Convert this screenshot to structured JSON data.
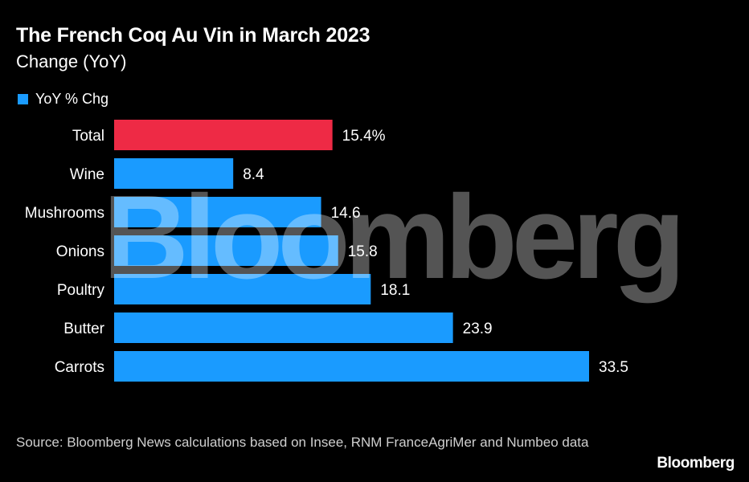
{
  "header": {
    "title": "The French Coq Au Vin in March 2023",
    "subtitle": "Change (YoY)"
  },
  "legend": {
    "label": "YoY % Chg"
  },
  "colors": {
    "background": "#000000",
    "series": "#1a9bff",
    "highlight": "#ee2a45",
    "text": "#ffffff"
  },
  "chart_data": {
    "type": "bar",
    "orientation": "horizontal",
    "categories": [
      "Total",
      "Wine",
      "Mushrooms",
      "Onions",
      "Poultry",
      "Butter",
      "Carrots"
    ],
    "series": [
      {
        "name": "YoY % Chg",
        "values": [
          15.4,
          8.4,
          14.6,
          15.8,
          18.1,
          23.9,
          33.5
        ]
      }
    ],
    "value_labels": [
      "15.4%",
      "8.4",
      "14.6",
      "15.8",
      "18.1",
      "23.9",
      "33.5"
    ],
    "highlight_category": "Total",
    "xlim": [
      0,
      33.5
    ],
    "grid": false,
    "legend_position": "top-left"
  },
  "watermark": "Bloomberg",
  "footer": {
    "source": "Source: Bloomberg News calculations based on Insee, RNM FranceAgriMer and Numbeo data",
    "brand": "Bloomberg"
  }
}
